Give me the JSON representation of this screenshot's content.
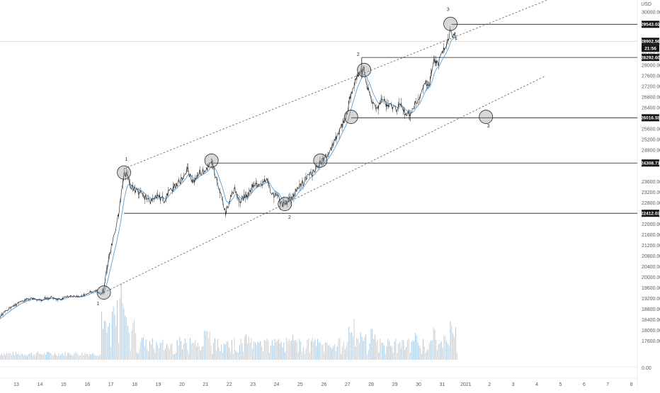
{
  "chart_data": {
    "type": "line",
    "title": "",
    "xlabel": "",
    "ylabel": "",
    "currency_label": "USD",
    "ylim": [
      17100,
      30300
    ],
    "x_ticks": [
      "13",
      "14",
      "15",
      "16",
      "17",
      "18",
      "19",
      "20",
      "21",
      "22",
      "23",
      "24",
      "25",
      "26",
      "27",
      "28",
      "29",
      "30",
      "31",
      "2021",
      "2",
      "3",
      "4",
      "5",
      "6",
      "7",
      "8"
    ],
    "y_ticks": [
      "30000.00",
      "29600.00",
      "28800.00",
      "28400.00",
      "28000.00",
      "27600.00",
      "27200.00",
      "26800.00",
      "26400.00",
      "25600.00",
      "25200.00",
      "24800.00",
      "23600.00",
      "23200.00",
      "22800.00",
      "22000.00",
      "21600.00",
      "21200.00",
      "20800.00",
      "20400.00",
      "20000.00",
      "19600.00",
      "19200.00",
      "18800.00",
      "18400.00",
      "18000.00",
      "17600.00"
    ],
    "volume_axis_label": "0.00",
    "levels": [
      {
        "label": "29543.02",
        "value": 29543.02
      },
      {
        "label": "28292.60",
        "value": 28292.6
      },
      {
        "label": "26016.55",
        "value": 26016.55
      },
      {
        "label": "24308.71",
        "value": 24308.71
      },
      {
        "label": "22412.03",
        "value": 22412.03
      }
    ],
    "last_price_label": "28902.56",
    "countdown_label": "21:56",
    "annotations": [
      {
        "text": "1",
        "x": 17.4,
        "y": 24400
      },
      {
        "text": "2",
        "x": 27.2,
        "y": 28350
      },
      {
        "text": "3",
        "x": 31.0,
        "y": 30050
      },
      {
        "text": "1",
        "x": 16.2,
        "y": 18950
      },
      {
        "text": "2",
        "x": 24.3,
        "y": 22200
      },
      {
        "text": "3",
        "x": 32.7,
        "y": 25650
      }
    ],
    "circles": [
      {
        "x": 17.3,
        "y": 23950
      },
      {
        "x": 21.0,
        "y": 24400
      },
      {
        "x": 16.45,
        "y": 19420
      },
      {
        "x": 24.1,
        "y": 22760
      },
      {
        "x": 25.6,
        "y": 24400
      },
      {
        "x": 26.9,
        "y": 26050
      },
      {
        "x": 27.45,
        "y": 27820
      },
      {
        "x": 31.1,
        "y": 29560
      },
      {
        "x": 32.6,
        "y": 26050
      }
    ],
    "channel_upper": {
      "from": [
        17.3,
        24100
      ],
      "to": [
        37.0,
        31100
      ]
    },
    "channel_lower": {
      "from": [
        16.45,
        19420
      ],
      "to": [
        37.0,
        28420
      ]
    },
    "price_series": {
      "x": [
        12.0,
        12.4,
        12.9,
        13.3,
        13.8,
        14.2,
        14.6,
        15.0,
        15.4,
        15.8,
        16.1,
        16.3,
        16.45,
        16.55,
        16.7,
        16.85,
        17.0,
        17.1,
        17.2,
        17.3,
        17.4,
        17.6,
        17.8,
        18.1,
        18.4,
        18.7,
        19.0,
        19.3,
        19.5,
        19.8,
        20.0,
        20.2,
        20.5,
        20.8,
        21.0,
        21.2,
        21.4,
        21.6,
        21.8,
        22.0,
        22.2,
        22.5,
        22.8,
        23.0,
        23.3,
        23.5,
        23.8,
        24.0,
        24.2,
        24.5,
        24.8,
        25.0,
        25.3,
        25.6,
        25.9,
        26.1,
        26.3,
        26.5,
        26.7,
        26.9,
        27.1,
        27.3,
        27.45,
        27.6,
        27.8,
        28.0,
        28.2,
        28.4,
        28.6,
        28.8,
        29.0,
        29.2,
        29.4,
        29.6,
        29.8,
        30.0,
        30.2,
        30.4,
        30.6,
        30.8,
        31.0,
        31.1,
        31.2,
        31.3,
        31.4
      ],
      "y": [
        18450,
        18800,
        19050,
        19200,
        19150,
        19250,
        19150,
        19300,
        19250,
        19400,
        19500,
        19350,
        19500,
        20200,
        20900,
        21500,
        22000,
        22600,
        23200,
        23850,
        23950,
        23400,
        23300,
        23100,
        22850,
        23050,
        22900,
        23300,
        23500,
        23700,
        24050,
        23600,
        23900,
        24100,
        24350,
        23700,
        23200,
        22400,
        23000,
        23300,
        22900,
        23100,
        23550,
        23400,
        23700,
        23250,
        23000,
        22750,
        22850,
        23150,
        23500,
        23700,
        23950,
        24300,
        24600,
        24900,
        25300,
        25700,
        26100,
        26900,
        27500,
        27700,
        27850,
        27150,
        26550,
        26300,
        26800,
        26500,
        26450,
        26300,
        26600,
        26200,
        26150,
        26550,
        26700,
        27400,
        27300,
        28150,
        28100,
        28600,
        28950,
        29400,
        29000,
        29200,
        28902.56
      ]
    },
    "volume": [
      {
        "x": 16.45,
        "v": 0.55
      },
      {
        "x": 16.6,
        "v": 0.4
      },
      {
        "x": 16.9,
        "v": 0.65
      },
      {
        "x": 17.2,
        "v": 0.85
      },
      {
        "x": 17.4,
        "v": 0.5
      },
      {
        "x": 17.7,
        "v": 0.45
      },
      {
        "x": 18.1,
        "v": 0.25
      },
      {
        "x": 18.8,
        "v": 0.2
      },
      {
        "x": 19.6,
        "v": 0.25
      },
      {
        "x": 20.2,
        "v": 0.3
      },
      {
        "x": 20.8,
        "v": 0.35
      },
      {
        "x": 21.6,
        "v": 0.3
      },
      {
        "x": 22.5,
        "v": 0.28
      },
      {
        "x": 23.3,
        "v": 0.33
      },
      {
        "x": 23.8,
        "v": 0.25
      },
      {
        "x": 24.5,
        "v": 0.35
      },
      {
        "x": 25.3,
        "v": 0.25
      },
      {
        "x": 26.1,
        "v": 0.2
      },
      {
        "x": 26.9,
        "v": 0.45
      },
      {
        "x": 27.4,
        "v": 0.35
      },
      {
        "x": 27.8,
        "v": 0.4
      },
      {
        "x": 28.2,
        "v": 0.25
      },
      {
        "x": 29.0,
        "v": 0.22
      },
      {
        "x": 29.6,
        "v": 0.3
      },
      {
        "x": 30.4,
        "v": 0.35
      },
      {
        "x": 30.9,
        "v": 0.28
      },
      {
        "x": 31.2,
        "v": 0.45
      }
    ],
    "colors": {
      "price_line": "#141414",
      "price_wick": "#3a3a3a",
      "ema": "#5aa0d8",
      "volume": "#9bc4e6",
      "volume_alt": "#c9c9c9",
      "level_line": "#1c1c1c",
      "channel": "#444444",
      "circle_fill": "rgba(140,140,140,0.35)",
      "circle_stroke": "#2a2a2a",
      "label_bg": "#141414",
      "axis_text": "#5b5b5b"
    }
  }
}
